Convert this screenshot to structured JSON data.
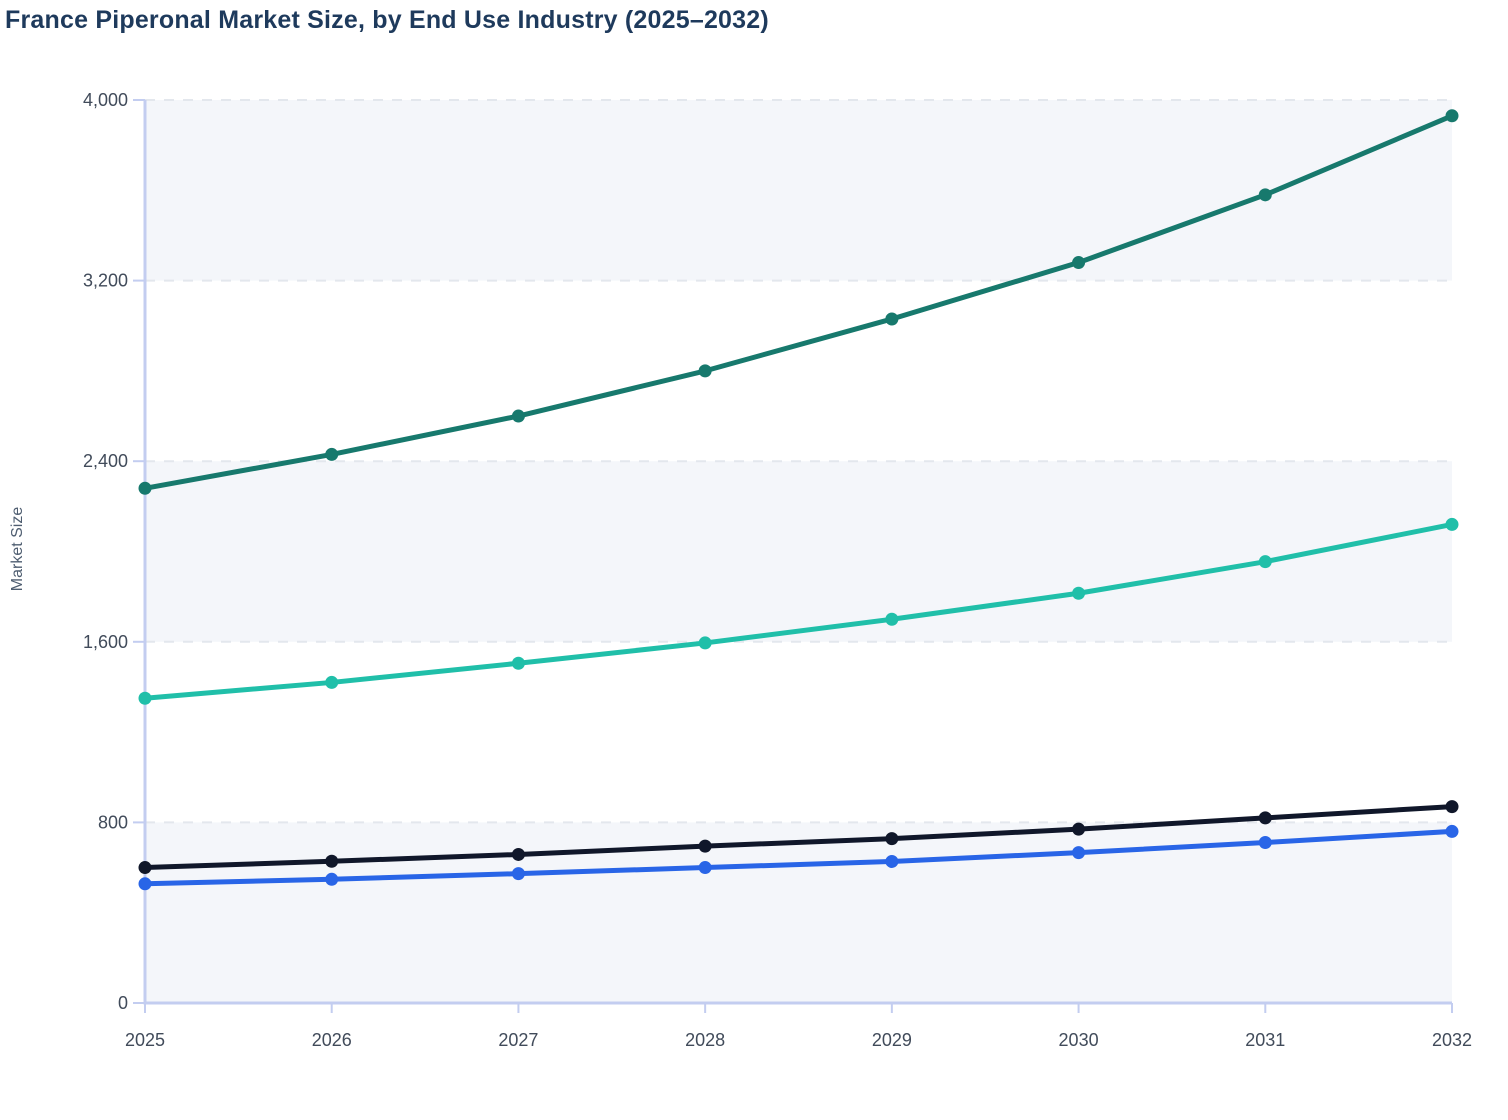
{
  "page": {
    "title": "France Piperonal Market Size, by End Use Industry (2025–2032)"
  },
  "chart_data": {
    "type": "line",
    "title": "France Piperonal Market Size, by End Use Industry (2025–2032)",
    "xlabel": "",
    "ylabel": "Market Size",
    "x": [
      2025,
      2026,
      2027,
      2028,
      2029,
      2030,
      2031,
      2032
    ],
    "x_tick_labels": [
      "2025",
      "2026",
      "2027",
      "2028",
      "2029",
      "2030",
      "2031",
      "2032"
    ],
    "y_ticks": [
      0,
      800,
      1600,
      2400,
      3200,
      4000
    ],
    "y_tick_labels": [
      "0",
      "800",
      "1,600",
      "2,400",
      "3,200",
      "4,000"
    ],
    "ylim": [
      0,
      4000
    ],
    "grid": "horizontal-dashed",
    "legend_position": "none",
    "series": [
      {
        "name": "series-dark-teal",
        "color": "#17796D",
        "values": [
          2280,
          2430,
          2600,
          2800,
          3030,
          3280,
          3580,
          3930
        ]
      },
      {
        "name": "series-teal",
        "color": "#20BFA9",
        "values": [
          1350,
          1420,
          1505,
          1595,
          1700,
          1815,
          1955,
          2120
        ]
      },
      {
        "name": "series-black",
        "color": "#10172A",
        "values": [
          600,
          628,
          658,
          695,
          728,
          770,
          820,
          870
        ]
      },
      {
        "name": "series-blue",
        "color": "#2965E7",
        "values": [
          528,
          548,
          573,
          600,
          627,
          666,
          711,
          760
        ]
      }
    ],
    "colors": {
      "title_text": "#1e3a5c",
      "tick_text": "#414b5a",
      "axis_title_text": "#4e5d70",
      "axis_line": "#c3cdf0",
      "gridline": "#e3e7ed",
      "band_fill": "#f4f6fa",
      "background": "#ffffff"
    }
  }
}
